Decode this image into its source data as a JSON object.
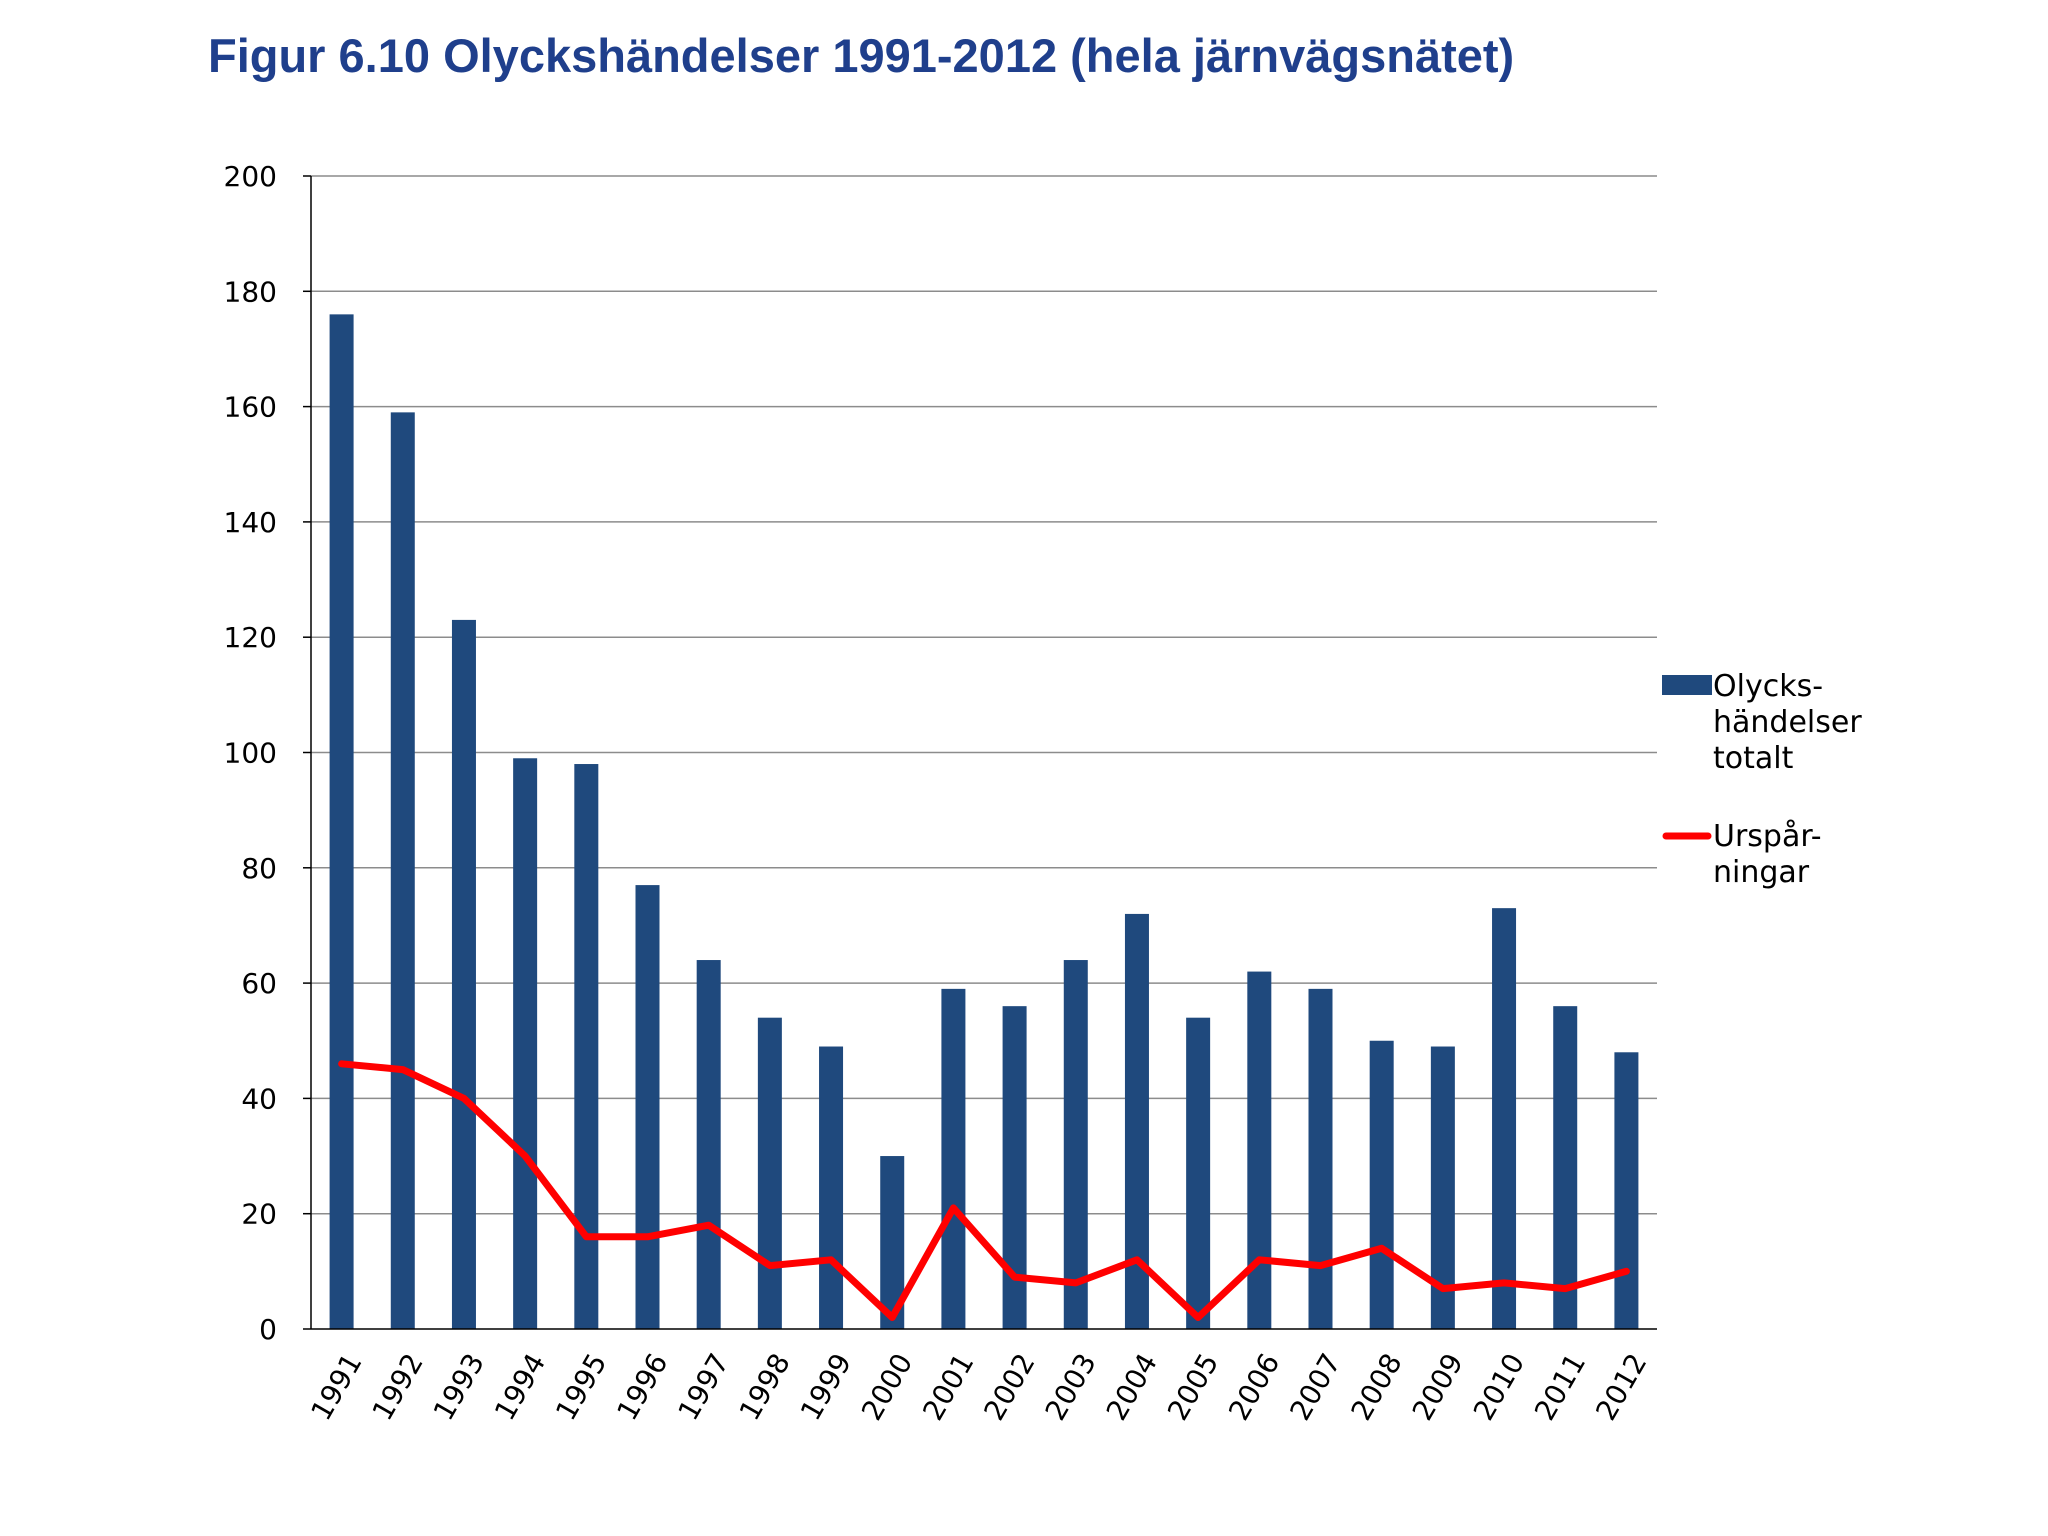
{
  "title": "Figur 6.10 Olyckshändelser 1991-2012 (hela järnvägsnätet)",
  "chart_data": {
    "type": "bar",
    "title": "Figur 6.10 Olyckshändelser 1991-2012 (hela järnvägsnätet)",
    "xlabel": "",
    "ylabel": "",
    "ylim": [
      0,
      200
    ],
    "yticks": [
      0,
      20,
      40,
      60,
      80,
      100,
      120,
      140,
      160,
      180,
      200
    ],
    "grid": true,
    "legend_position": "right",
    "categories": [
      "1991",
      "1992",
      "1993",
      "1994",
      "1995",
      "1996",
      "1997",
      "1998",
      "1999",
      "2000",
      "2001",
      "2002",
      "2003",
      "2004",
      "2005",
      "2006",
      "2007",
      "2008",
      "2009",
      "2010",
      "2011",
      "2012"
    ],
    "series": [
      {
        "name": "Olycks-händelser totalt",
        "legend_lines": [
          "Olycks-",
          "händelser",
          "totalt"
        ],
        "type": "bar",
        "color": "#1f497d",
        "values": [
          176,
          159,
          123,
          99,
          98,
          77,
          64,
          54,
          49,
          30,
          59,
          56,
          64,
          72,
          54,
          62,
          59,
          50,
          49,
          73,
          56,
          48
        ]
      },
      {
        "name": "Urspår-ningar",
        "legend_lines": [
          "Urspår-",
          "ningar"
        ],
        "type": "line",
        "color": "#ff0000",
        "values": [
          46,
          45,
          40,
          30,
          16,
          16,
          18,
          11,
          12,
          2,
          21,
          9,
          8,
          12,
          2,
          12,
          11,
          14,
          7,
          8,
          7,
          10
        ]
      }
    ]
  }
}
